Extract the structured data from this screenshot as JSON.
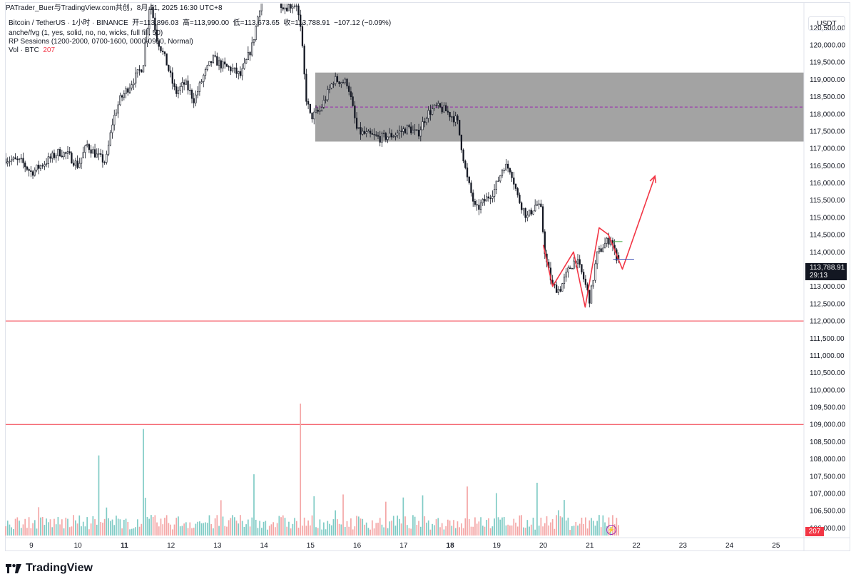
{
  "attribution": "PATrader_Buer与TradingView.com共创，8月 21, 2025 16:30 UTC+8",
  "legend": {
    "symbol_line": "Bitcoin / TetherUS · 1小时 · BINANCE",
    "open_label": "开=113,896.03",
    "high_label": "高=113,990.00",
    "low_label": "低=113,673.65",
    "close_label": "收=113,788.91",
    "change_label": "−107.12 (−0.09%)",
    "indicator_1": "anche/fvg (1, yes, solid, no, no, wicks, full fill, 50)",
    "indicator_2": "RP Sessions (1200-2000, 0700-1600, 0000-0900, Normal)",
    "volume_label": "Vol · BTC",
    "volume_value": "207"
  },
  "currency": "USDT",
  "last_price": {
    "price": "113,788.91",
    "countdown": "29:13"
  },
  "volume_tag": "207",
  "brand": "TradingView",
  "colors": {
    "up": "#131722",
    "down": "#131722",
    "vol_up": "#7fcbc5",
    "vol_down": "#f4a6a6",
    "fvg_zone": "#9e9e9e",
    "midline": "#9c27b0",
    "level_line": "#f23645",
    "projection": "#f23645"
  },
  "chart_data": {
    "type": "candlestick",
    "symbol": "Bitcoin / TetherUS",
    "timeframe": "1小时",
    "exchange": "BINANCE",
    "y_ticks": [
      "106,000.00",
      "106,500.00",
      "107,000.00",
      "107,500.00",
      "108,000.00",
      "108,500.00",
      "109,000.00",
      "109,500.00",
      "110,000.00",
      "110,500.00",
      "111,000.00",
      "111,500.00",
      "112,000.00",
      "112,500.00",
      "113,000.00",
      "113,500.00",
      "114,000.00",
      "114,500.00",
      "115,000.00",
      "115,500.00",
      "116,000.00",
      "116,500.00",
      "117,000.00",
      "117,500.00",
      "118,000.00",
      "118,500.00",
      "119,000.00",
      "119,500.00",
      "120,000.00",
      "120,500.00"
    ],
    "ylim": [
      105800,
      121200
    ],
    "x_ticks": [
      {
        "label": "9",
        "day": 9,
        "bold": false
      },
      {
        "label": "10",
        "day": 10,
        "bold": false
      },
      {
        "label": "11",
        "day": 11,
        "bold": true
      },
      {
        "label": "12",
        "day": 12,
        "bold": false
      },
      {
        "label": "13",
        "day": 13,
        "bold": false
      },
      {
        "label": "14",
        "day": 14,
        "bold": false
      },
      {
        "label": "15",
        "day": 15,
        "bold": false
      },
      {
        "label": "16",
        "day": 16,
        "bold": false
      },
      {
        "label": "17",
        "day": 17,
        "bold": false
      },
      {
        "label": "18",
        "day": 18,
        "bold": true
      },
      {
        "label": "19",
        "day": 19,
        "bold": false
      },
      {
        "label": "20",
        "day": 20,
        "bold": false
      },
      {
        "label": "21",
        "day": 21,
        "bold": false
      },
      {
        "label": "22",
        "day": 22,
        "bold": false
      },
      {
        "label": "23",
        "day": 23,
        "bold": false
      },
      {
        "label": "24",
        "day": 24,
        "bold": false
      },
      {
        "label": "25",
        "day": 25,
        "bold": false
      }
    ],
    "xlim": [
      8.45,
      25.6
    ],
    "anchors": [
      [
        8.45,
        116700
      ],
      [
        8.8,
        116600
      ],
      [
        9.0,
        116300
      ],
      [
        9.3,
        116600
      ],
      [
        9.6,
        116900
      ],
      [
        9.8,
        116800
      ],
      [
        10.0,
        116500
      ],
      [
        10.2,
        117100
      ],
      [
        10.4,
        116800
      ],
      [
        10.6,
        116600
      ],
      [
        10.75,
        117800
      ],
      [
        10.9,
        118400
      ],
      [
        11.1,
        118800
      ],
      [
        11.25,
        119100
      ],
      [
        11.4,
        119400
      ],
      [
        11.55,
        121300
      ],
      [
        11.7,
        120200
      ],
      [
        11.9,
        119500
      ],
      [
        12.1,
        118600
      ],
      [
        12.3,
        118900
      ],
      [
        12.5,
        118400
      ],
      [
        12.7,
        119100
      ],
      [
        12.9,
        119600
      ],
      [
        13.1,
        119400
      ],
      [
        13.3,
        119300
      ],
      [
        13.5,
        119100
      ],
      [
        13.75,
        120000
      ],
      [
        13.95,
        121400
      ],
      [
        14.1,
        121600
      ],
      [
        14.3,
        121300
      ],
      [
        14.45,
        121100
      ],
      [
        14.7,
        121200
      ],
      [
        14.8,
        120300
      ],
      [
        14.9,
        118500
      ],
      [
        15.0,
        117900
      ],
      [
        15.2,
        118100
      ],
      [
        15.5,
        119000
      ],
      [
        15.8,
        118900
      ],
      [
        16.0,
        117500
      ],
      [
        16.2,
        117400
      ],
      [
        16.5,
        117300
      ],
      [
        16.8,
        117400
      ],
      [
        17.1,
        117600
      ],
      [
        17.3,
        117400
      ],
      [
        17.5,
        118000
      ],
      [
        17.7,
        118200
      ],
      [
        17.9,
        118100
      ],
      [
        18.15,
        117800
      ],
      [
        18.35,
        116200
      ],
      [
        18.55,
        115200
      ],
      [
        18.75,
        115500
      ],
      [
        18.95,
        115800
      ],
      [
        19.15,
        116500
      ],
      [
        19.3,
        116400
      ],
      [
        19.45,
        115600
      ],
      [
        19.65,
        115000
      ],
      [
        19.85,
        115400
      ],
      [
        19.95,
        115200
      ],
      [
        20.05,
        113800
      ],
      [
        20.2,
        113000
      ],
      [
        20.35,
        112900
      ],
      [
        20.55,
        113500
      ],
      [
        20.7,
        113800
      ],
      [
        20.85,
        113300
      ],
      [
        21.0,
        112600
      ],
      [
        21.15,
        113900
      ],
      [
        21.3,
        114200
      ],
      [
        21.45,
        114400
      ],
      [
        21.55,
        113900
      ],
      [
        21.65,
        113790
      ]
    ],
    "fvg_zone": {
      "from_day": 15.1,
      "to_day": 25.6,
      "top": 119200,
      "bottom": 117200,
      "mid": 118200
    },
    "level_lines": [
      112000,
      109000
    ],
    "projection_path": [
      [
        20.0,
        114200
      ],
      [
        20.2,
        113000
      ],
      [
        20.65,
        114000
      ],
      [
        20.9,
        112400
      ],
      [
        21.2,
        114700
      ],
      [
        21.4,
        114500
      ],
      [
        21.7,
        113500
      ],
      [
        22.4,
        116200
      ]
    ],
    "last_price_line": {
      "from_day": 21.5,
      "to_day": 21.95,
      "price": 113789
    },
    "green_mark": {
      "from_day": 21.5,
      "to_day": 21.7,
      "price": 114300
    },
    "volume": {
      "max": 1400,
      "spikes": [
        [
          10.45,
          850
        ],
        [
          11.4,
          1130
        ],
        [
          14.8,
          1520
        ],
        [
          19.85,
          560
        ],
        [
          13.8,
          650
        ],
        [
          18.35,
          520
        ]
      ]
    }
  }
}
